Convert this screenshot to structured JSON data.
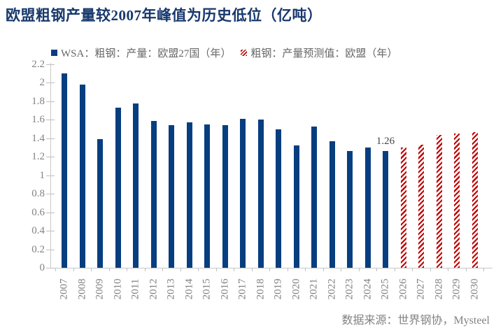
{
  "title": "欧盟粗钢产量较2007年峰值为历史低位（亿吨）",
  "legend": [
    {
      "label": "WSA：粗钢：产量：欧盟27国（年）",
      "style": "solid",
      "color": "#073E80"
    },
    {
      "label": "粗钢：产量预测值：欧盟（年）",
      "style": "hatched",
      "color": "#C00000"
    }
  ],
  "source": "数据来源：世界钢协，Mysteel",
  "colors": {
    "title": "#17386C",
    "bar_solid": "#073E80",
    "bar_hatched": "#C00000",
    "axis_line": "#C9C9C9",
    "axis_text": "#7F7F7F"
  },
  "chart_data": {
    "type": "bar",
    "title": "欧盟粗钢产量较2007年峰值为历史低位（亿吨）",
    "categories": [
      "2007",
      "2008",
      "2009",
      "2010",
      "2011",
      "2012",
      "2013",
      "2014",
      "2015",
      "2016",
      "2017",
      "2018",
      "2019",
      "2020",
      "2021",
      "2022",
      "2023",
      "2024",
      "2025",
      "2026",
      "2027",
      "2028",
      "2029",
      "2030"
    ],
    "series": [
      {
        "name": "WSA：粗钢：产量：欧盟27国（年）",
        "style": "solid",
        "color": "#073E80",
        "values": [
          2.1,
          1.98,
          1.39,
          1.73,
          1.78,
          1.59,
          1.54,
          1.57,
          1.55,
          1.54,
          1.61,
          1.6,
          1.5,
          1.32,
          1.53,
          1.37,
          1.26,
          1.3,
          1.26,
          null,
          null,
          null,
          null,
          null
        ]
      },
      {
        "name": "粗钢：产量预测值：欧盟（年）",
        "style": "hatched",
        "color": "#C00000",
        "values": [
          null,
          null,
          null,
          null,
          null,
          null,
          null,
          null,
          null,
          null,
          null,
          null,
          null,
          null,
          null,
          null,
          null,
          null,
          null,
          1.3,
          1.33,
          1.44,
          1.45,
          1.47
        ]
      }
    ],
    "ylim": [
      0,
      2.2
    ],
    "ytick_labels": [
      "2.2",
      "2",
      "1.8",
      "1.6",
      "1.4",
      "1.2",
      "1",
      "0.8",
      "0.6",
      "0.4",
      "0.2",
      "0"
    ],
    "grid": false,
    "legend_position": "top-left",
    "xlabel": "",
    "ylabel": "",
    "data_labels": [
      {
        "category": "2025",
        "text": "1.26"
      }
    ]
  }
}
